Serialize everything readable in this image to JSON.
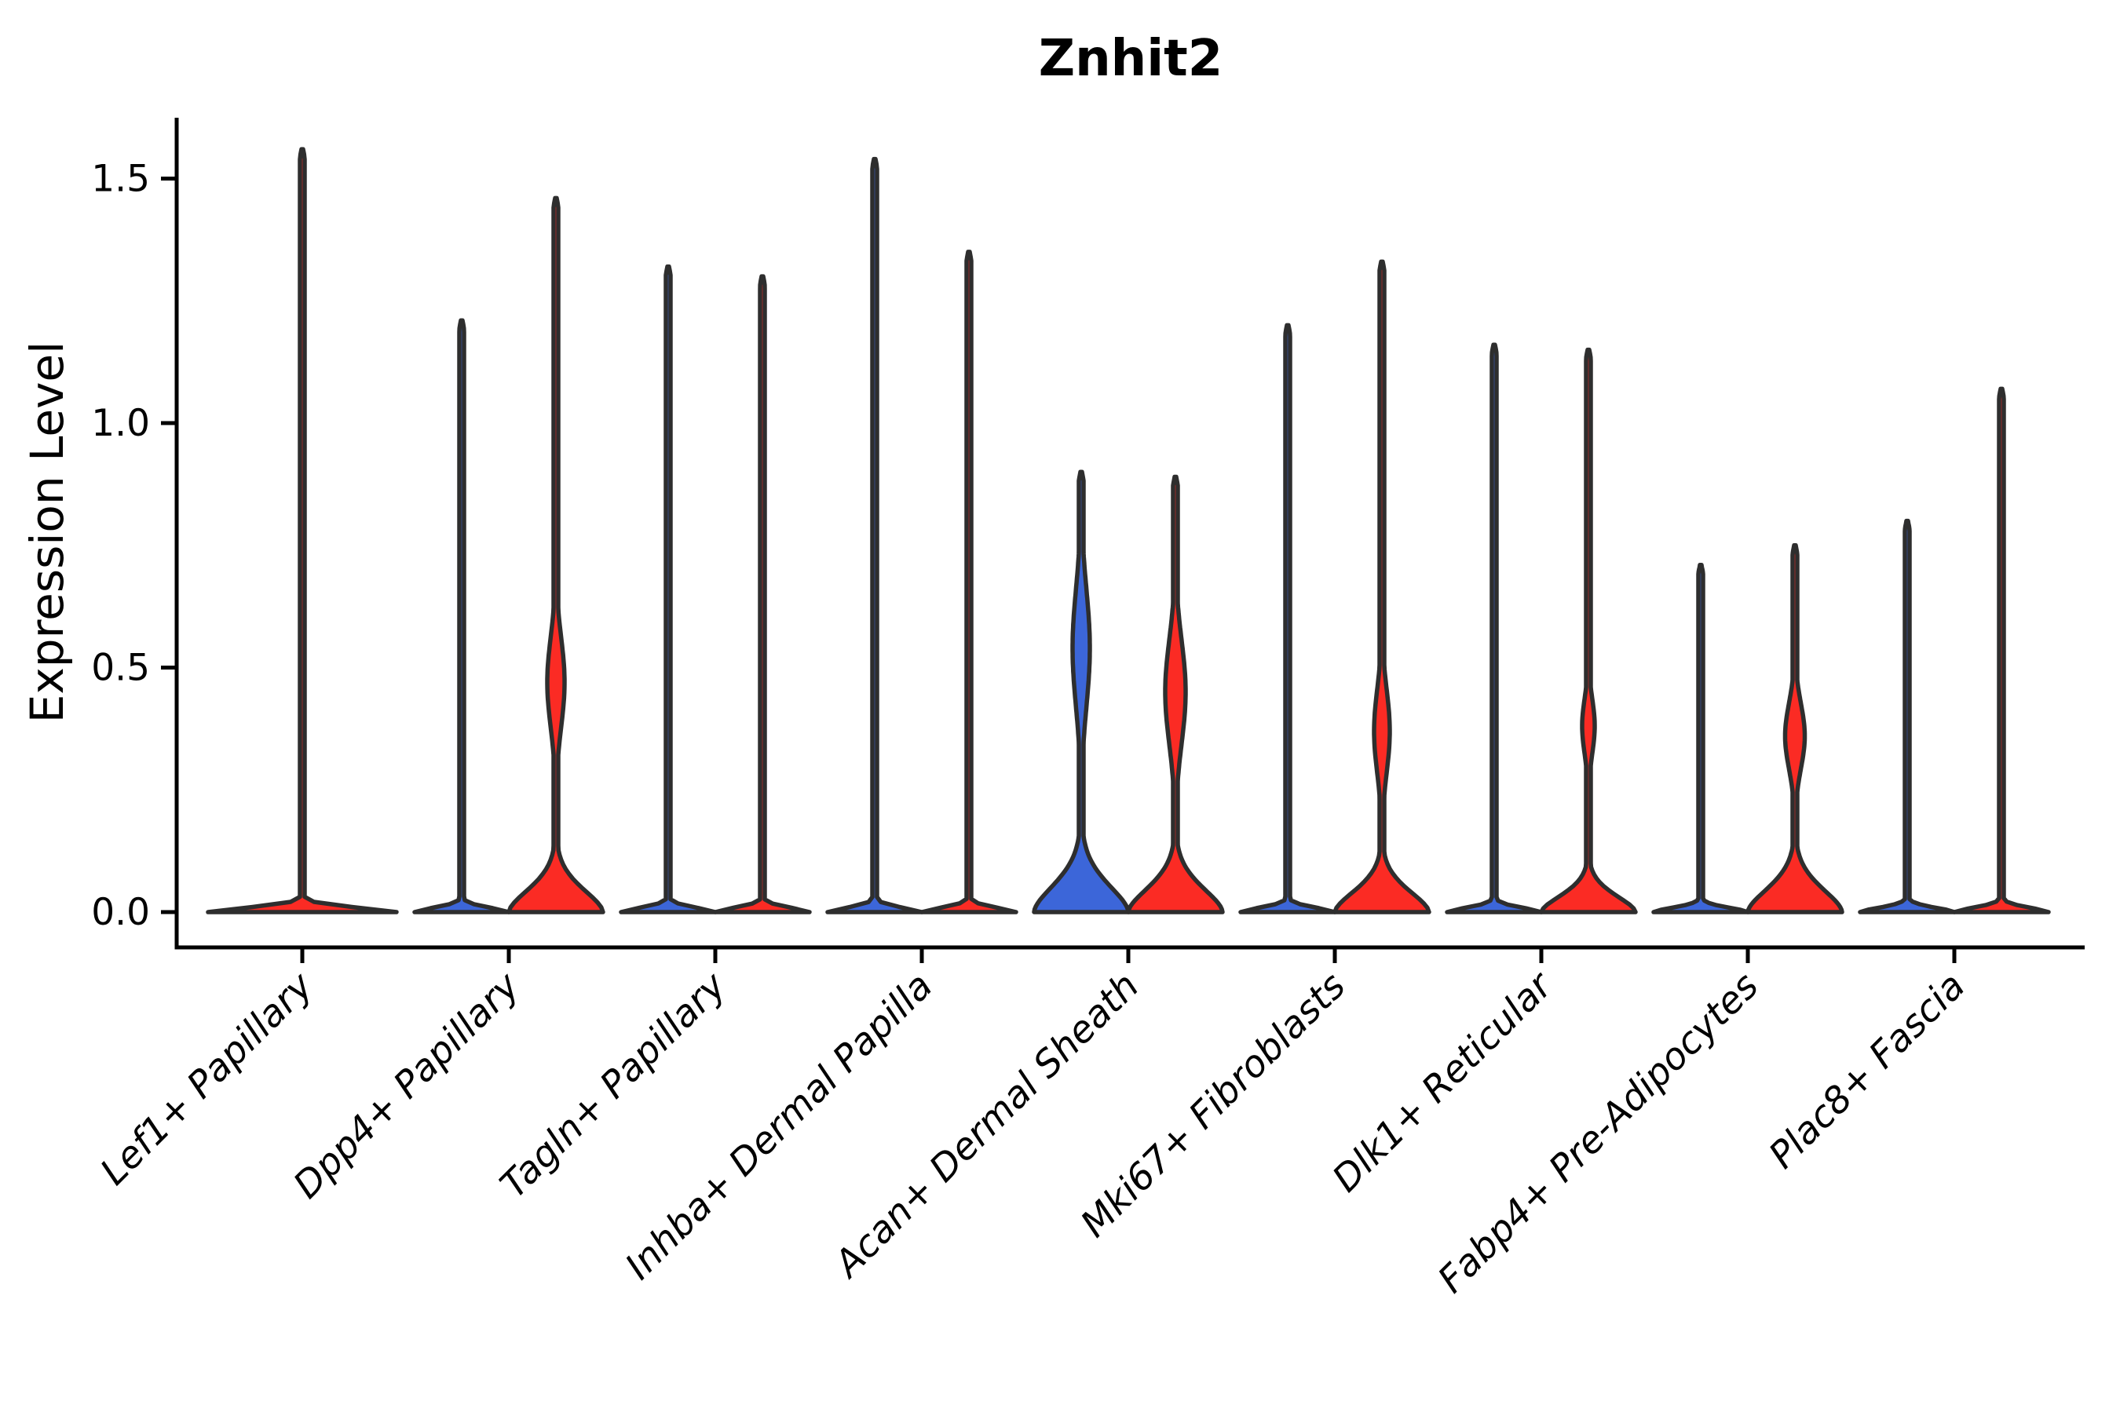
{
  "figure": {
    "background": "#ffffff"
  },
  "chart_data": {
    "type": "violin",
    "title": "Znhit2",
    "ylabel": "Expression Level",
    "xlabel": "",
    "grid": false,
    "legend": null,
    "ylim": [
      0,
      1.62
    ],
    "yticks": [
      0.0,
      0.5,
      1.0,
      1.5
    ],
    "ytick_labels": [
      "0.0",
      "0.5",
      "1.0",
      "1.5"
    ],
    "categories": [
      "Lef1+ Papillary",
      "Dpp4+ Papillary",
      "Tagln+ Papillary",
      "Inhba+ Dermal Papilla",
      "Acan+ Dermal Sheath",
      "Mki67+ Fibroblasts",
      "Dlk1+ Reticular",
      "Fabp4+ Pre-Adipocytes",
      "Plac8+ Fascia"
    ],
    "colors": {
      "red": "#fb2b24",
      "blue": "#3c66d9",
      "outline": "#2e2e2e"
    },
    "violins": [
      {
        "category": "Lef1+ Papillary",
        "cat_index": 0,
        "position": "center",
        "color_key": "red",
        "max_expression": 1.56,
        "base_half_width": 120,
        "base_top": 0.03,
        "bulge": null
      },
      {
        "category": "Dpp4+ Papillary",
        "cat_index": 1,
        "position": "left",
        "color_key": "blue",
        "max_expression": 1.21,
        "base_half_width": 60,
        "base_top": 0.03,
        "bulge": null
      },
      {
        "category": "Dpp4+ Papillary",
        "cat_index": 1,
        "position": "right",
        "color_key": "red",
        "max_expression": 1.46,
        "base_half_width": 60,
        "base_top": 0.15,
        "bulge": {
          "center": 0.47,
          "spread": 0.13,
          "half_width": 11
        }
      },
      {
        "category": "Tagln+ Papillary",
        "cat_index": 2,
        "position": "left",
        "color_key": "blue",
        "max_expression": 1.32,
        "base_half_width": 60,
        "base_top": 0.03,
        "bulge": null
      },
      {
        "category": "Tagln+ Papillary",
        "cat_index": 2,
        "position": "right",
        "color_key": "red",
        "max_expression": 1.3,
        "base_half_width": 60,
        "base_top": 0.03,
        "bulge": null
      },
      {
        "category": "Inhba+ Dermal Papilla",
        "cat_index": 3,
        "position": "left",
        "color_key": "blue",
        "max_expression": 1.54,
        "base_half_width": 60,
        "base_top": 0.03,
        "bulge": null
      },
      {
        "category": "Inhba+ Dermal Papilla",
        "cat_index": 3,
        "position": "right",
        "color_key": "red",
        "max_expression": 1.35,
        "base_half_width": 60,
        "base_top": 0.03,
        "bulge": null
      },
      {
        "category": "Acan+ Dermal Sheath",
        "cat_index": 4,
        "position": "left",
        "color_key": "blue",
        "max_expression": 0.9,
        "base_half_width": 60,
        "base_top": 0.18,
        "bulge": {
          "center": 0.54,
          "spread": 0.17,
          "half_width": 11
        }
      },
      {
        "category": "Acan+ Dermal Sheath",
        "cat_index": 4,
        "position": "right",
        "color_key": "red",
        "max_expression": 0.89,
        "base_half_width": 60,
        "base_top": 0.16,
        "bulge": {
          "center": 0.45,
          "spread": 0.15,
          "half_width": 13
        }
      },
      {
        "category": "Mki67+ Fibroblasts",
        "cat_index": 5,
        "position": "left",
        "color_key": "blue",
        "max_expression": 1.2,
        "base_half_width": 60,
        "base_top": 0.03,
        "bulge": null
      },
      {
        "category": "Mki67+ Fibroblasts",
        "cat_index": 5,
        "position": "right",
        "color_key": "red",
        "max_expression": 1.33,
        "base_half_width": 60,
        "base_top": 0.14,
        "bulge": {
          "center": 0.37,
          "spread": 0.12,
          "half_width": 10
        }
      },
      {
        "category": "Dlk1+ Reticular",
        "cat_index": 6,
        "position": "left",
        "color_key": "blue",
        "max_expression": 1.16,
        "base_half_width": 60,
        "base_top": 0.03,
        "bulge": null
      },
      {
        "category": "Dlk1+ Reticular",
        "cat_index": 6,
        "position": "right",
        "color_key": "red",
        "max_expression": 1.15,
        "base_half_width": 60,
        "base_top": 0.11,
        "bulge": {
          "center": 0.38,
          "spread": 0.08,
          "half_width": 8
        }
      },
      {
        "category": "Fabp4+ Pre-Adipocytes",
        "cat_index": 7,
        "position": "left",
        "color_key": "blue",
        "max_expression": 0.71,
        "base_half_width": 60,
        "base_top": 0.03,
        "bulge": null
      },
      {
        "category": "Fabp4+ Pre-Adipocytes",
        "cat_index": 7,
        "position": "right",
        "color_key": "red",
        "max_expression": 0.75,
        "base_half_width": 60,
        "base_top": 0.155,
        "bulge": {
          "center": 0.36,
          "spread": 0.095,
          "half_width": 12.5
        }
      },
      {
        "category": "Plac8+ Fascia",
        "cat_index": 8,
        "position": "left",
        "color_key": "blue",
        "max_expression": 0.8,
        "base_half_width": 60,
        "base_top": 0.03,
        "bulge": null
      },
      {
        "category": "Plac8+ Fascia",
        "cat_index": 8,
        "position": "right",
        "color_key": "red",
        "max_expression": 1.07,
        "base_half_width": 60,
        "base_top": 0.03,
        "bulge": null
      }
    ]
  }
}
